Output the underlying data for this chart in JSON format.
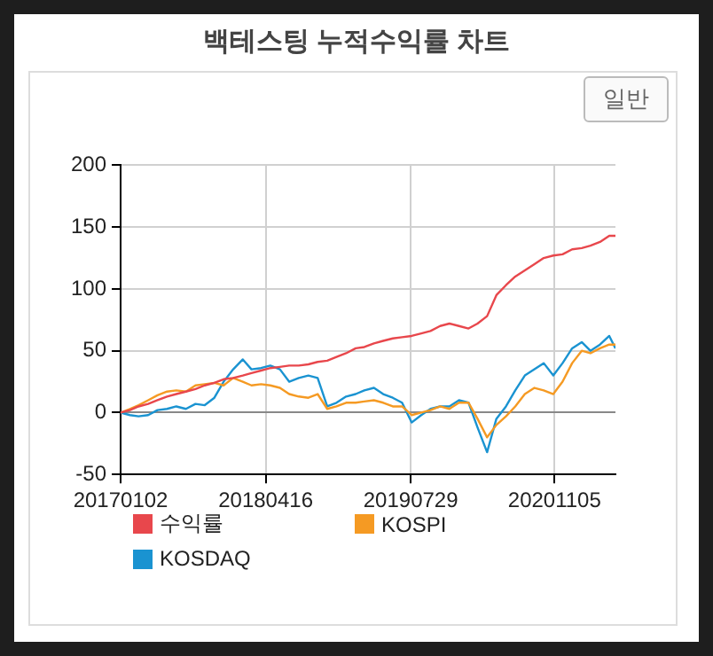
{
  "chart_data": {
    "type": "line",
    "title": "백테스팅 누적수익률 차트",
    "annotations": [
      "일반"
    ],
    "x": [
      "2017-01-02",
      "2017-02-01",
      "2017-03-01",
      "2017-04-01",
      "2017-05-01",
      "2017-06-01",
      "2017-07-01",
      "2017-08-01",
      "2017-09-01",
      "2017-10-01",
      "2017-11-01",
      "2017-12-01",
      "2018-01-01",
      "2018-02-01",
      "2018-03-01",
      "2018-04-01",
      "2018-05-01",
      "2018-06-01",
      "2018-07-01",
      "2018-08-01",
      "2018-09-01",
      "2018-10-01",
      "2018-11-01",
      "2018-12-01",
      "2019-01-01",
      "2019-02-01",
      "2019-03-01",
      "2019-04-01",
      "2019-05-01",
      "2019-06-01",
      "2019-07-01",
      "2019-08-01",
      "2019-09-01",
      "2019-10-01",
      "2019-11-01",
      "2019-12-01",
      "2020-01-01",
      "2020-02-01",
      "2020-03-01",
      "2020-04-01",
      "2020-05-01",
      "2020-06-01",
      "2020-07-01",
      "2020-08-01",
      "2020-09-01",
      "2020-10-01",
      "2020-11-01",
      "2020-12-01",
      "2021-01-01",
      "2021-02-01",
      "2021-03-01",
      "2021-04-01",
      "2021-05-01",
      "2021-05-21"
    ],
    "series": [
      {
        "name": "수익률",
        "color": "#e8474c",
        "values": [
          0,
          2,
          5,
          7,
          10,
          13,
          15,
          17,
          19,
          22,
          24,
          27,
          28,
          30,
          32,
          34,
          36,
          37,
          38,
          38,
          39,
          41,
          42,
          45,
          48,
          52,
          53,
          56,
          58,
          60,
          61,
          62,
          64,
          66,
          70,
          72,
          70,
          68,
          72,
          78,
          95,
          103,
          110,
          115,
          120,
          125,
          127,
          128,
          132,
          133,
          135,
          138,
          143,
          143
        ]
      },
      {
        "name": "KOSPI",
        "color": "#f59a23",
        "values": [
          0,
          3,
          6,
          10,
          14,
          17,
          18,
          17,
          22,
          23,
          24,
          22,
          28,
          25,
          22,
          23,
          22,
          20,
          15,
          13,
          12,
          15,
          3,
          5,
          8,
          8,
          9,
          10,
          8,
          5,
          5,
          -2,
          0,
          2,
          5,
          3,
          8,
          8,
          -5,
          -20,
          -10,
          -3,
          5,
          15,
          20,
          18,
          15,
          25,
          40,
          50,
          48,
          52,
          55,
          55
        ]
      },
      {
        "name": "KOSDAQ",
        "color": "#1a93d1",
        "values": [
          0,
          -2,
          -3,
          -2,
          2,
          3,
          5,
          3,
          7,
          6,
          12,
          25,
          35,
          43,
          35,
          36,
          38,
          35,
          25,
          28,
          30,
          28,
          5,
          8,
          13,
          15,
          18,
          20,
          15,
          12,
          8,
          -8,
          -2,
          3,
          5,
          5,
          10,
          8,
          -12,
          -32,
          -5,
          5,
          18,
          30,
          35,
          40,
          30,
          40,
          52,
          57,
          50,
          55,
          62,
          52
        ]
      }
    ],
    "xlim": [
      "2017-01-02",
      "2021-05-21"
    ],
    "xticks": [
      {
        "value": "2017-01-02",
        "label": "20170102"
      },
      {
        "value": "2018-04-16",
        "label": "20180416"
      },
      {
        "value": "2019-07-29",
        "label": "20190729"
      },
      {
        "value": "2020-11-05",
        "label": "20201105"
      }
    ],
    "ylim": [
      -50,
      200
    ],
    "yticks": [
      -50,
      0,
      50,
      100,
      150,
      200
    ],
    "grid": true,
    "legend": "bottom left",
    "marker": "none",
    "line_style": "solid"
  }
}
